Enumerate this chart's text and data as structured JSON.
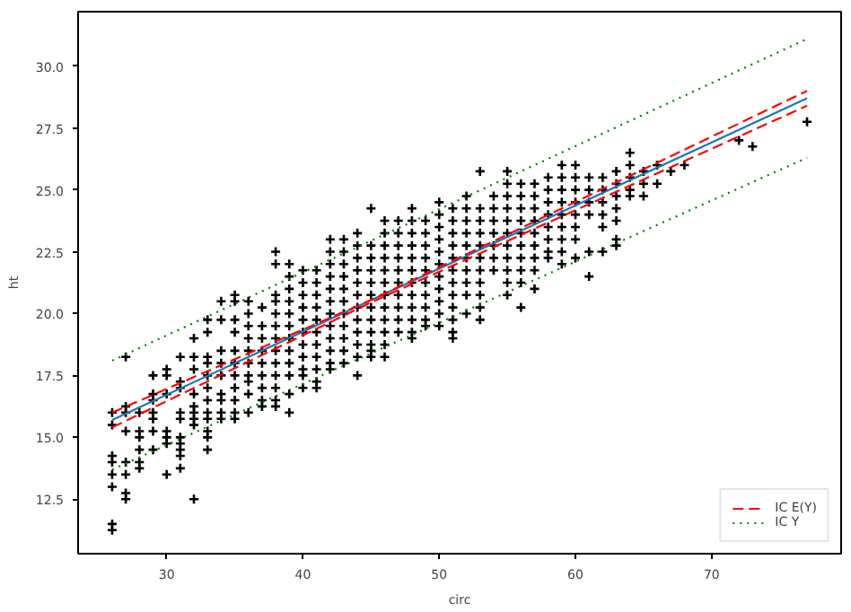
{
  "chart_data": {
    "type": "scatter",
    "xlabel": "circ",
    "ylabel": "ht",
    "xlim": [
      23.5,
      79.5
    ],
    "ylim": [
      10.3,
      32.2
    ],
    "xticks": [
      30,
      40,
      50,
      60,
      70
    ],
    "yticks": [
      12.5,
      {
        "value": 15,
        "label": "15.0"
      },
      17.5,
      {
        "value": 20,
        "label": "20.0"
      },
      22.5,
      {
        "value": 25,
        "label": "25.0"
      },
      27.5,
      {
        "value": 30,
        "label": "30.0"
      }
    ],
    "grid": false,
    "legend": "bottom right",
    "series": [
      {
        "color": "#000000",
        "marker": "cross",
        "x": [
          26,
          26,
          26,
          26,
          26,
          26,
          26,
          26,
          27,
          27,
          27,
          27,
          27,
          27,
          27,
          27,
          28,
          28,
          28,
          28,
          28,
          28,
          29,
          29,
          29,
          29,
          29,
          29,
          29,
          30,
          30,
          30,
          30,
          30,
          30,
          30,
          31,
          31,
          31,
          31,
          31,
          31,
          31,
          31,
          31,
          31,
          32,
          32,
          32,
          32,
          32,
          32,
          32,
          32,
          32,
          33,
          33,
          33,
          33,
          33,
          33,
          33,
          33,
          33,
          33,
          33,
          33,
          34,
          34,
          34,
          34,
          34,
          34,
          34,
          34,
          34,
          35,
          35,
          35,
          35,
          35,
          35,
          35,
          35,
          35,
          35,
          35,
          36,
          36,
          36,
          36,
          36,
          36,
          36,
          36,
          36,
          36,
          37,
          37,
          37,
          37,
          37,
          37,
          37,
          37,
          37,
          38,
          38,
          38,
          38,
          38,
          38,
          38,
          38,
          38,
          38,
          38,
          38,
          38,
          39,
          39,
          39,
          39,
          39,
          39,
          39,
          39,
          39,
          39,
          39,
          39,
          40,
          40,
          40,
          40,
          40,
          40,
          40,
          40,
          40,
          40,
          40,
          41,
          41,
          41,
          41,
          41,
          41,
          41,
          41,
          41,
          41,
          41,
          42,
          42,
          42,
          42,
          42,
          42,
          42,
          42,
          42,
          42,
          42,
          42,
          43,
          43,
          43,
          43,
          43,
          43,
          43,
          43,
          43,
          43,
          43,
          44,
          44,
          44,
          44,
          44,
          44,
          44,
          44,
          44,
          44,
          44,
          44,
          45,
          45,
          45,
          45,
          45,
          45,
          45,
          45,
          45,
          45,
          45,
          45,
          46,
          46,
          46,
          46,
          46,
          46,
          46,
          46,
          46,
          46,
          46,
          46,
          47,
          47,
          47,
          47,
          47,
          47,
          47,
          47,
          47,
          47,
          48,
          48,
          48,
          48,
          48,
          48,
          48,
          48,
          48,
          48,
          48,
          48,
          49,
          49,
          49,
          49,
          49,
          49,
          49,
          49,
          49,
          49,
          50,
          50,
          50,
          50,
          50,
          50,
          50,
          50,
          50,
          50,
          50,
          51,
          51,
          51,
          51,
          51,
          51,
          51,
          51,
          51,
          51,
          51,
          51,
          52,
          52,
          52,
          52,
          52,
          52,
          52,
          52,
          52,
          52,
          53,
          53,
          53,
          53,
          53,
          53,
          53,
          53,
          53,
          53,
          53,
          54,
          54,
          54,
          54,
          54,
          54,
          54,
          55,
          55,
          55,
          55,
          55,
          55,
          55,
          55,
          55,
          55,
          55,
          56,
          56,
          56,
          56,
          56,
          56,
          56,
          56,
          56,
          56,
          57,
          57,
          57,
          57,
          57,
          57,
          57,
          57,
          57,
          58,
          58,
          58,
          58,
          58,
          58,
          58,
          58,
          59,
          59,
          59,
          59,
          59,
          59,
          59,
          59,
          59,
          60,
          60,
          60,
          60,
          60,
          60,
          60,
          60,
          61,
          61,
          61,
          61,
          61,
          61,
          62,
          62,
          62,
          62,
          62,
          62,
          63,
          63,
          63,
          63,
          63,
          63,
          63,
          64,
          64,
          64,
          64,
          64,
          65,
          65,
          65,
          66,
          66,
          67,
          68,
          72,
          73,
          77
        ],
        "values": [
          16,
          15.5,
          14.25,
          14,
          13.5,
          13,
          11.5,
          11.25,
          18.25,
          16.25,
          16,
          15.25,
          14,
          13.5,
          12.75,
          12.5,
          16,
          15.25,
          15,
          14.5,
          14,
          13.75,
          17.5,
          16.75,
          16.5,
          16,
          15.75,
          15.25,
          14.5,
          17.75,
          17.5,
          16.75,
          15.25,
          15,
          14.75,
          13.5,
          18.25,
          17.25,
          17,
          16,
          15.75,
          15,
          14.75,
          14.5,
          14.25,
          13.75,
          19,
          18.25,
          17.75,
          16.75,
          16.25,
          16,
          15.75,
          15.5,
          12.5,
          19.75,
          19.25,
          18.25,
          18,
          17.5,
          17,
          16.5,
          16,
          15.75,
          15.25,
          15,
          14.5,
          20.5,
          19.75,
          18.5,
          18,
          17.5,
          16.75,
          16.5,
          16,
          15.75,
          20.75,
          20.5,
          19.75,
          19.25,
          18.5,
          18,
          17.5,
          17,
          16.5,
          16,
          15.75,
          20.5,
          20,
          19.5,
          19,
          18.5,
          18,
          17.5,
          17.25,
          16.75,
          16,
          20.25,
          19.5,
          19,
          18.5,
          18,
          17.5,
          17,
          16.5,
          16.25,
          22.5,
          22,
          20.75,
          20.5,
          20,
          19.5,
          19,
          18.5,
          18,
          17.5,
          17,
          16.5,
          16.25,
          22,
          21.5,
          21,
          20.5,
          20,
          19.5,
          19,
          18.5,
          18,
          17.5,
          16.75,
          16,
          21.75,
          21.25,
          20.75,
          20.25,
          19.75,
          19.25,
          18.75,
          18.25,
          17.75,
          17.5,
          17,
          21.75,
          21.25,
          20.75,
          20.25,
          19.75,
          19.25,
          18.75,
          18.25,
          17.75,
          17.25,
          17,
          23,
          22.5,
          22,
          21.5,
          21,
          20.5,
          20,
          19.5,
          19,
          18.5,
          18,
          17.75,
          23,
          22.5,
          22,
          21.5,
          21,
          20.5,
          20,
          19.5,
          19,
          18.5,
          18,
          23.25,
          22.75,
          22.25,
          21.75,
          21.25,
          20.75,
          20.25,
          19.75,
          19.25,
          18.75,
          18.25,
          17.5,
          24.25,
          22.75,
          22.25,
          21.75,
          21.25,
          20.75,
          20.25,
          19.75,
          19.25,
          18.75,
          18.5,
          18.25,
          23.75,
          23.25,
          22.75,
          22.25,
          21.75,
          21.25,
          20.75,
          20.25,
          19.75,
          19.25,
          18.75,
          18.25,
          23.75,
          23.25,
          22.75,
          22.25,
          21.75,
          21.25,
          20.75,
          20.25,
          19.75,
          19.25,
          24.25,
          23.75,
          23.25,
          22.75,
          22.25,
          21.75,
          21.25,
          20.75,
          20.25,
          19.75,
          19.25,
          19,
          23.75,
          23.25,
          22.75,
          22.25,
          21.75,
          21.25,
          20.75,
          20.25,
          19.75,
          19.5,
          24.5,
          24,
          23.5,
          23,
          22.5,
          22,
          21.5,
          21,
          20.5,
          20,
          19.5,
          24.25,
          23.75,
          23.25,
          22.75,
          22.25,
          21.75,
          21.25,
          20.75,
          20.25,
          19.75,
          19.25,
          19,
          24.75,
          24.25,
          23.75,
          23.25,
          22.75,
          22.25,
          21.75,
          21.25,
          20.75,
          20,
          25.75,
          24.25,
          23.75,
          23.25,
          22.75,
          22.25,
          21.75,
          21.25,
          20.75,
          20.25,
          19.75,
          24.75,
          24.25,
          23.75,
          23.25,
          22.75,
          22.25,
          21.75,
          25.75,
          25.25,
          24.75,
          24.25,
          23.75,
          23.25,
          22.75,
          22.25,
          21.75,
          21.25,
          20.75,
          25.25,
          24.75,
          24.25,
          23.75,
          23.25,
          22.75,
          22.25,
          21.75,
          21.25,
          20.25,
          25.25,
          24.75,
          24.25,
          23.75,
          23.25,
          22.75,
          22.25,
          21.75,
          21,
          25.5,
          25,
          24.5,
          24,
          23.5,
          23,
          22.5,
          22.25,
          26,
          25.5,
          25,
          24.5,
          24,
          23.5,
          23,
          22.5,
          22,
          26,
          25.5,
          25,
          24.5,
          24,
          23.5,
          23,
          22.25,
          25.5,
          25,
          24.5,
          24,
          22.5,
          21.5,
          25.5,
          25,
          24.5,
          24,
          23.5,
          22.5,
          25.75,
          25.25,
          24.75,
          24.25,
          23.75,
          23,
          22.75,
          26.5,
          26,
          25.5,
          25,
          24.75,
          25.75,
          25.25,
          24.75,
          26,
          25.25,
          25.75,
          26,
          27,
          26.75,
          27.75
        ]
      },
      {
        "type": "line",
        "color": "#1f77b4",
        "line_style": "solid",
        "x": [
          26,
          77
        ],
        "values": [
          15.7,
          28.7
        ]
      },
      {
        "type": "line",
        "name": "IC E(Y)",
        "color": "#ff0000",
        "line_style": "dashed",
        "x": [
          26,
          45,
          77
        ],
        "values": [
          16.0,
          20.55,
          29.0
        ]
      },
      {
        "type": "line",
        "color": "#ff0000",
        "line_style": "dashed",
        "x": [
          26,
          45,
          77
        ],
        "values": [
          15.4,
          20.45,
          28.4
        ]
      },
      {
        "type": "line",
        "name": "IC Y",
        "color": "#008000",
        "line_style": "dotted",
        "x": [
          26,
          77
        ],
        "values": [
          18.1,
          31.1
        ]
      },
      {
        "type": "line",
        "color": "#008000",
        "line_style": "dotted",
        "x": [
          26,
          77
        ],
        "values": [
          13.7,
          26.3
        ]
      }
    ]
  }
}
